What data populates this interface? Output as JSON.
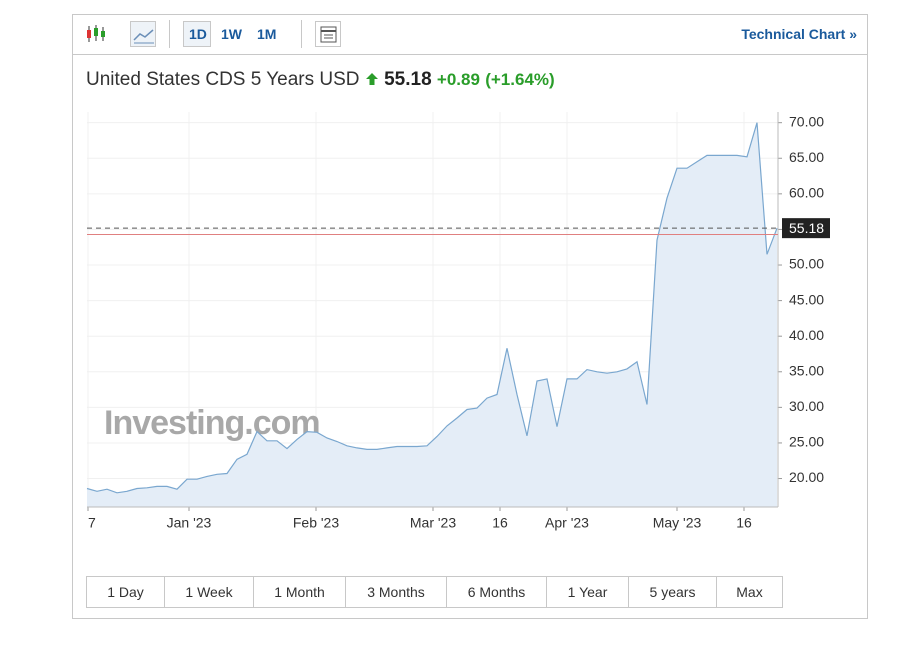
{
  "toolbar": {
    "timeframes": [
      "1D",
      "1W",
      "1M"
    ],
    "technical": "Technical Chart »"
  },
  "header": {
    "title": "United States CDS 5 Years USD",
    "price": "55.18",
    "change": "+0.89",
    "change_pct": "(+1.64%)"
  },
  "watermark": "Investing.com",
  "ranges": [
    "1 Day",
    "1 Week",
    "1 Month",
    "3 Months",
    "6 Months",
    "1 Year",
    "5 years",
    "Max"
  ],
  "chart_data": {
    "type": "line",
    "values": [
      18.6,
      18.2,
      18.5,
      18.0,
      18.2,
      18.6,
      18.7,
      18.9,
      18.9,
      18.5,
      19.9,
      19.9,
      20.3,
      20.6,
      20.7,
      22.7,
      23.4,
      26.6,
      25.3,
      25.3,
      24.2,
      25.5,
      26.6,
      26.5,
      25.7,
      25.2,
      24.6,
      24.3,
      24.1,
      24.1,
      24.3,
      24.5,
      24.5,
      24.5,
      24.6,
      25.9,
      27.4,
      28.5,
      29.7,
      29.9,
      31.3,
      31.8,
      38.3,
      31.8,
      26.0,
      33.7,
      34.0,
      27.3,
      34.0,
      34.0,
      35.3,
      35.0,
      34.8,
      35.0,
      35.4,
      36.4,
      30.4,
      53.5,
      59.4,
      63.6,
      63.6,
      64.5,
      65.4,
      65.4,
      65.4,
      65.4,
      65.2,
      70.0,
      51.5,
      55.18
    ],
    "color": "#7aa7cf",
    "fill": "#e4edf7",
    "last_value": {
      "value": 55.18,
      "label": "55.18"
    },
    "previous_close": 54.29,
    "xlim": [
      0,
      69.1
    ],
    "xticks": [
      {
        "value": 0.1,
        "label": "7"
      },
      {
        "value": 10.2,
        "label": "Jan '23"
      },
      {
        "value": 22.9,
        "label": "Feb '23"
      },
      {
        "value": 34.6,
        "label": "Mar '23"
      },
      {
        "value": 41.3,
        "label": "16"
      },
      {
        "value": 48,
        "label": "Apr '23"
      },
      {
        "value": 59,
        "label": "May '23"
      },
      {
        "value": 65.7,
        "label": "16"
      }
    ],
    "ylim": [
      16,
      71.5
    ],
    "yticks": [
      {
        "value": 20,
        "label": "20.00"
      },
      {
        "value": 25,
        "label": "25.00"
      },
      {
        "value": 30,
        "label": "30.00"
      },
      {
        "value": 35,
        "label": "35.00"
      },
      {
        "value": 40,
        "label": "40.00"
      },
      {
        "value": 45,
        "label": "45.00"
      },
      {
        "value": 50,
        "label": "50.00"
      },
      {
        "value": 55,
        "label": "55.00"
      },
      {
        "value": 60,
        "label": "60.00"
      },
      {
        "value": 65,
        "label": "65.00"
      },
      {
        "value": 70,
        "label": "70.00"
      }
    ],
    "grid": true
  }
}
